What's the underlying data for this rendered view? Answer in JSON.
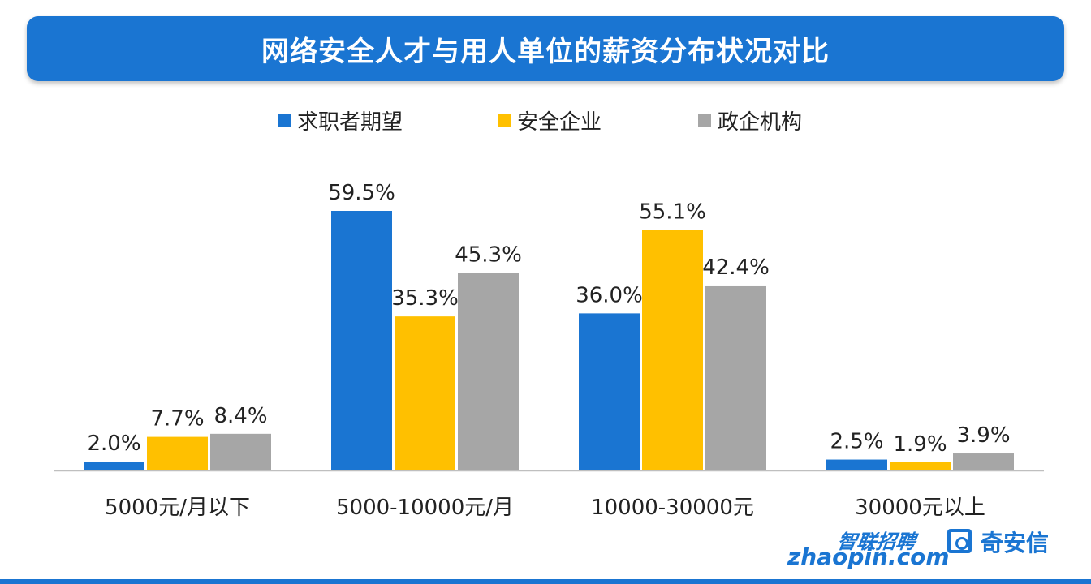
{
  "colors": {
    "title_bg": "#1a75d2",
    "series": [
      "#1a75d2",
      "#ffc000",
      "#a6a6a6"
    ],
    "axis": "#bfbfbf",
    "text": "#222222"
  },
  "logos": {
    "zhaopin_cn": "智联招聘",
    "zhaopin_en": "zhaopin.com",
    "qianxin": "奇安信"
  },
  "chart_data": {
    "type": "bar",
    "title": "网络安全人才与用人单位的薪资分布状况对比",
    "categories": [
      "5000元/月以下",
      "5000-10000元/月",
      "10000-30000元",
      "30000元以上"
    ],
    "series": [
      {
        "name": "求职者期望",
        "values": [
          2.0,
          59.5,
          36.0,
          2.5
        ],
        "labels": [
          "2.0%",
          "59.5%",
          "36.0%",
          "2.5%"
        ]
      },
      {
        "name": "安全企业",
        "values": [
          7.7,
          35.3,
          55.1,
          1.9
        ],
        "labels": [
          "7.7%",
          "35.3%",
          "55.1%",
          "1.9%"
        ]
      },
      {
        "name": "政企机构",
        "values": [
          8.4,
          45.3,
          42.4,
          3.9
        ],
        "labels": [
          "8.4%",
          "45.3%",
          "42.4%",
          "3.9%"
        ]
      }
    ],
    "unit": "%",
    "ylim": [
      0,
      60
    ],
    "grid": false,
    "legend_position": "top-center",
    "xlabel": "",
    "ylabel": ""
  }
}
